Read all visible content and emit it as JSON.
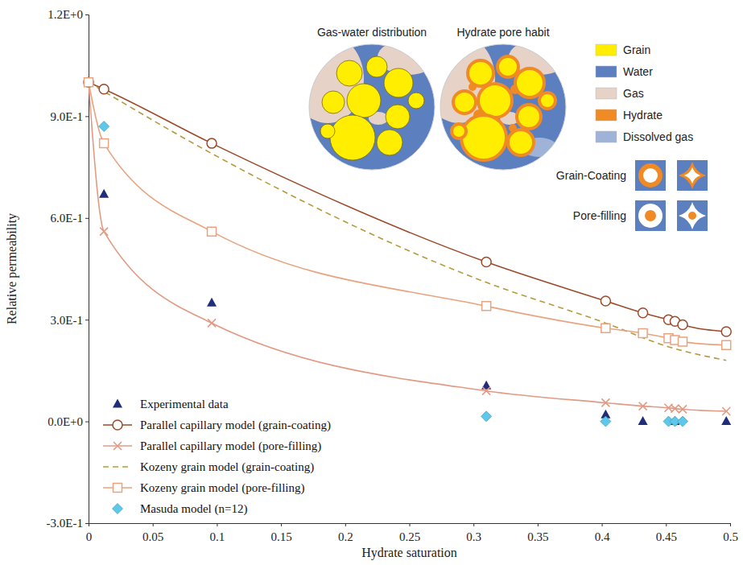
{
  "chart_data": {
    "type": "line",
    "x_label": "Hydrate saturation",
    "y_label": "Relative permeability",
    "xlim": [
      0,
      0.5
    ],
    "xticks": [
      0,
      0.05,
      0.1,
      0.15,
      0.2,
      0.25,
      0.3,
      0.35,
      0.4,
      0.45,
      0.5
    ],
    "ylim": [
      -0.3,
      1.2
    ],
    "yticks": [
      {
        "value": -0.3,
        "label": "-3.0E-1"
      },
      {
        "value": 0,
        "label": "0.0E+0"
      },
      {
        "value": 0.3,
        "label": "3.0E-1"
      },
      {
        "value": 0.6,
        "label": "6.0E-1"
      },
      {
        "value": 0.9,
        "label": "9.0E-1"
      },
      {
        "value": 1.2,
        "label": "1.2E+0"
      }
    ],
    "grid": false,
    "legend": "lower left",
    "series": [
      {
        "name": "Experimental data",
        "type": "scatter",
        "marker": "triangle",
        "line_style": "none",
        "color": "#1f2d7b",
        "x": [
          0,
          0.012,
          0.096,
          0.31,
          0.403,
          0.432,
          0.457,
          0.497
        ],
        "values": [
          1.0,
          0.67,
          0.35,
          0.105,
          0.02,
          0.0,
          0.0,
          0.0
        ]
      },
      {
        "name": "Parallel capillary model  (grain-coating)",
        "type": "line",
        "marker": "circle",
        "line_style": "solid",
        "color": "#9c4a2a",
        "x": [
          0,
          0.012,
          0.096,
          0.31,
          0.403,
          0.432,
          0.452,
          0.457,
          0.463,
          0.497
        ],
        "values": [
          1.0,
          0.98,
          0.82,
          0.47,
          0.355,
          0.32,
          0.3,
          0.295,
          0.285,
          0.265
        ]
      },
      {
        "name": "Parallel capillary model  (pore-filling)",
        "type": "line",
        "marker": "x",
        "line_style": "solid",
        "color": "#e39a85",
        "x": [
          0,
          0.012,
          0.096,
          0.31,
          0.403,
          0.432,
          0.452,
          0.457,
          0.463,
          0.497
        ],
        "values": [
          1.0,
          0.56,
          0.29,
          0.09,
          0.055,
          0.045,
          0.04,
          0.038,
          0.036,
          0.03
        ]
      },
      {
        "name": "Kozeny grain model  (grain-coating)",
        "type": "line",
        "marker": "none",
        "line_style": "dashed",
        "color": "#b59a3c",
        "x": [
          0,
          0.096,
          0.31,
          0.403,
          0.452,
          0.497
        ],
        "values": [
          1.0,
          0.79,
          0.41,
          0.29,
          0.22,
          0.18
        ]
      },
      {
        "name": "Kozeny grain model  (pore-filling)",
        "type": "line",
        "marker": "square",
        "line_style": "solid",
        "color": "#e9a37f",
        "x": [
          0,
          0.012,
          0.096,
          0.31,
          0.403,
          0.432,
          0.452,
          0.457,
          0.463,
          0.497
        ],
        "values": [
          1.0,
          0.82,
          0.56,
          0.34,
          0.275,
          0.26,
          0.245,
          0.24,
          0.235,
          0.225
        ]
      },
      {
        "name": "Masuda model  (n=12)",
        "type": "scatter",
        "marker": "diamond",
        "line_style": "none",
        "color": "#5cc8ea",
        "x": [
          0.012,
          0.31,
          0.403,
          0.452,
          0.457,
          0.463
        ],
        "values": [
          0.87,
          0.015,
          0.0,
          0.0,
          0.0,
          0.0
        ]
      }
    ],
    "annotations": {
      "panel_titles": [
        "Gas-water distribution",
        "Hydrate pore habit"
      ],
      "components": [
        {
          "name": "Grain",
          "color": "#ffee00"
        },
        {
          "name": "Water",
          "color": "#5b7fbf"
        },
        {
          "name": "Gas",
          "color": "#e6d2c6"
        },
        {
          "name": "Hydrate",
          "color": "#f08a24"
        },
        {
          "name": "Dissolved gas",
          "color": "#9fb3d9"
        }
      ],
      "pore_habits": [
        "Grain-Coating",
        "Pore-filling"
      ]
    }
  }
}
